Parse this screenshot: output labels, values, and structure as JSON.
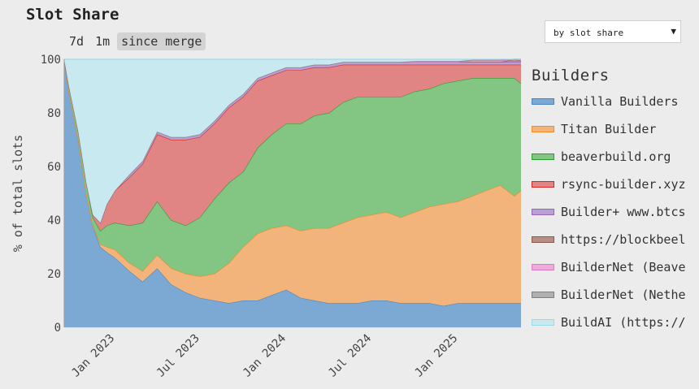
{
  "header": {
    "title": "Slot Share",
    "range_tabs": [
      "7d",
      "1m",
      "since merge"
    ],
    "active_tab": "since merge",
    "sort_select": {
      "value": "by slot share",
      "caret": "▼"
    }
  },
  "legend": {
    "title": "Builders"
  },
  "chart_data": {
    "type": "area",
    "stacked": true,
    "ylabel": "% of total slots",
    "xlabel": "",
    "ylim": [
      0,
      100
    ],
    "yticks": [
      0,
      20,
      40,
      60,
      80,
      100
    ],
    "xlim": [
      "2022-09-15",
      "2025-05-15"
    ],
    "xticks": [
      {
        "date": "2023-01-01",
        "label": "Jan 2023"
      },
      {
        "date": "2023-07-01",
        "label": "Jul 2023"
      },
      {
        "date": "2024-01-01",
        "label": "Jan 2024"
      },
      {
        "date": "2024-07-01",
        "label": "Jul 2024"
      },
      {
        "date": "2025-01-01",
        "label": "Jan 2025"
      }
    ],
    "grid": true,
    "legend_position": "right",
    "x": [
      "2022-09-15",
      "2022-09-25",
      "2022-10-15",
      "2022-11-01",
      "2022-11-15",
      "2022-12-01",
      "2022-12-15",
      "2023-01-01",
      "2023-02-01",
      "2023-03-01",
      "2023-04-01",
      "2023-05-01",
      "2023-06-01",
      "2023-07-01",
      "2023-08-01",
      "2023-09-01",
      "2023-10-01",
      "2023-11-01",
      "2023-12-01",
      "2024-01-01",
      "2024-02-01",
      "2024-03-01",
      "2024-04-01",
      "2024-05-01",
      "2024-06-01",
      "2024-07-01",
      "2024-08-01",
      "2024-09-01",
      "2024-10-01",
      "2024-11-01",
      "2024-12-01",
      "2025-01-01",
      "2025-02-01",
      "2025-03-01",
      "2025-04-01",
      "2025-05-01",
      "2025-05-15"
    ],
    "series": [
      {
        "name": "Vanilla Builders",
        "color": "#4e87c0",
        "fill": "#7ba9d3",
        "values": [
          100,
          88,
          70,
          50,
          38,
          30,
          28,
          26,
          21,
          17,
          22,
          16,
          13,
          11,
          10,
          9,
          10,
          10,
          12,
          14,
          11,
          10,
          9,
          9,
          9,
          10,
          10,
          9,
          9,
          9,
          8,
          9,
          9,
          9,
          9,
          9,
          9
        ]
      },
      {
        "name": "Titan Builder",
        "color": "#f28a21",
        "fill": "#f3b47c",
        "values": [
          0,
          0,
          0,
          0,
          0,
          1,
          2,
          3,
          3,
          4,
          5,
          6,
          7,
          8,
          10,
          15,
          20,
          25,
          25,
          24,
          25,
          27,
          28,
          30,
          32,
          32,
          33,
          32,
          34,
          36,
          38,
          38,
          40,
          42,
          44,
          40,
          42
        ]
      },
      {
        "name": "beaverbuild.org",
        "color": "#2ca02c",
        "fill": "#83c582",
        "values": [
          0,
          2,
          3,
          4,
          3,
          5,
          8,
          10,
          14,
          18,
          20,
          18,
          18,
          22,
          28,
          30,
          28,
          32,
          35,
          38,
          40,
          42,
          43,
          45,
          45,
          44,
          43,
          45,
          45,
          44,
          45,
          45,
          44,
          42,
          40,
          44,
          40
        ]
      },
      {
        "name": "rsync-builder.xyz",
        "color": "#d62728",
        "fill": "#e08484",
        "values": [
          0,
          0,
          0,
          0,
          1,
          3,
          8,
          12,
          18,
          22,
          25,
          30,
          32,
          30,
          28,
          28,
          28,
          25,
          22,
          20,
          20,
          18,
          17,
          14,
          12,
          12,
          12,
          12,
          10,
          9,
          7,
          6,
          5,
          5,
          5,
          5,
          7
        ]
      },
      {
        "name": "Builder+ www.btcs.com/builder",
        "color": "#9467bd",
        "fill": "#b89fd4",
        "values": [
          0,
          0,
          0,
          0,
          0,
          0,
          0,
          0,
          1,
          1,
          1,
          1,
          1,
          1,
          1,
          1,
          1,
          1,
          1,
          1,
          1,
          1,
          1,
          1,
          1,
          1,
          1,
          1,
          1,
          1,
          1,
          1,
          1,
          1,
          1,
          1,
          1
        ]
      },
      {
        "name": "https://blockbeelder.com",
        "color": "#8c564b",
        "fill": "#b88f87",
        "values": [
          0,
          0,
          0,
          0,
          0,
          0,
          0,
          0,
          0,
          0,
          0,
          0,
          0,
          0,
          0,
          0,
          0,
          0,
          0,
          0,
          0,
          0,
          0,
          0,
          0,
          0,
          0,
          0,
          0,
          0,
          0,
          0,
          0,
          0,
          0,
          1,
          0.5
        ]
      },
      {
        "name": "BuilderNet (Beaverbuild)",
        "color": "#e377c2",
        "fill": "#eeaad8",
        "values": [
          0,
          0,
          0,
          0,
          0,
          0,
          0,
          0,
          0,
          0,
          0,
          0,
          0,
          0,
          0,
          0,
          0,
          0,
          0,
          0,
          0,
          0,
          0,
          0,
          0,
          0,
          0,
          0,
          0,
          0,
          0,
          0,
          0.5,
          0.5,
          0.5,
          0.5,
          0.5
        ]
      },
      {
        "name": "BuilderNet (Nethermind)",
        "color": "#7f7f7f",
        "fill": "#b0b0b0",
        "values": [
          0,
          0,
          0,
          0,
          0,
          0,
          0,
          0,
          0,
          0,
          0,
          0,
          0,
          0,
          0,
          0,
          0,
          0,
          0,
          0,
          0,
          0,
          0,
          0,
          0,
          0,
          0,
          0,
          0.3,
          0.3,
          0.3,
          0.3,
          0.3,
          0.3,
          0.3,
          0.3,
          0.3
        ]
      },
      {
        "name": "BuildAI (https://buildai.net)",
        "color": "#9edae5",
        "fill": "#c8e9ef",
        "values": [
          0,
          10,
          27,
          46,
          58,
          61,
          54,
          49,
          43,
          38,
          27,
          29,
          29,
          28,
          23,
          17,
          13,
          7,
          5,
          3,
          3,
          2,
          2,
          1,
          1,
          1,
          1,
          1,
          0.7,
          0.7,
          0.7,
          0.7,
          0.2,
          0.2,
          0.2,
          0.2,
          0.2
        ]
      }
    ],
    "legend_labels_visible": [
      "Vanilla Builders",
      "Titan Builder",
      "beaverbuild.org",
      "rsync-builder.xyz",
      "Builder+ www.btcs",
      "https://blockbeel",
      "BuilderNet (Beave",
      "BuilderNet (Nethe",
      "BuildAI (https://"
    ]
  }
}
